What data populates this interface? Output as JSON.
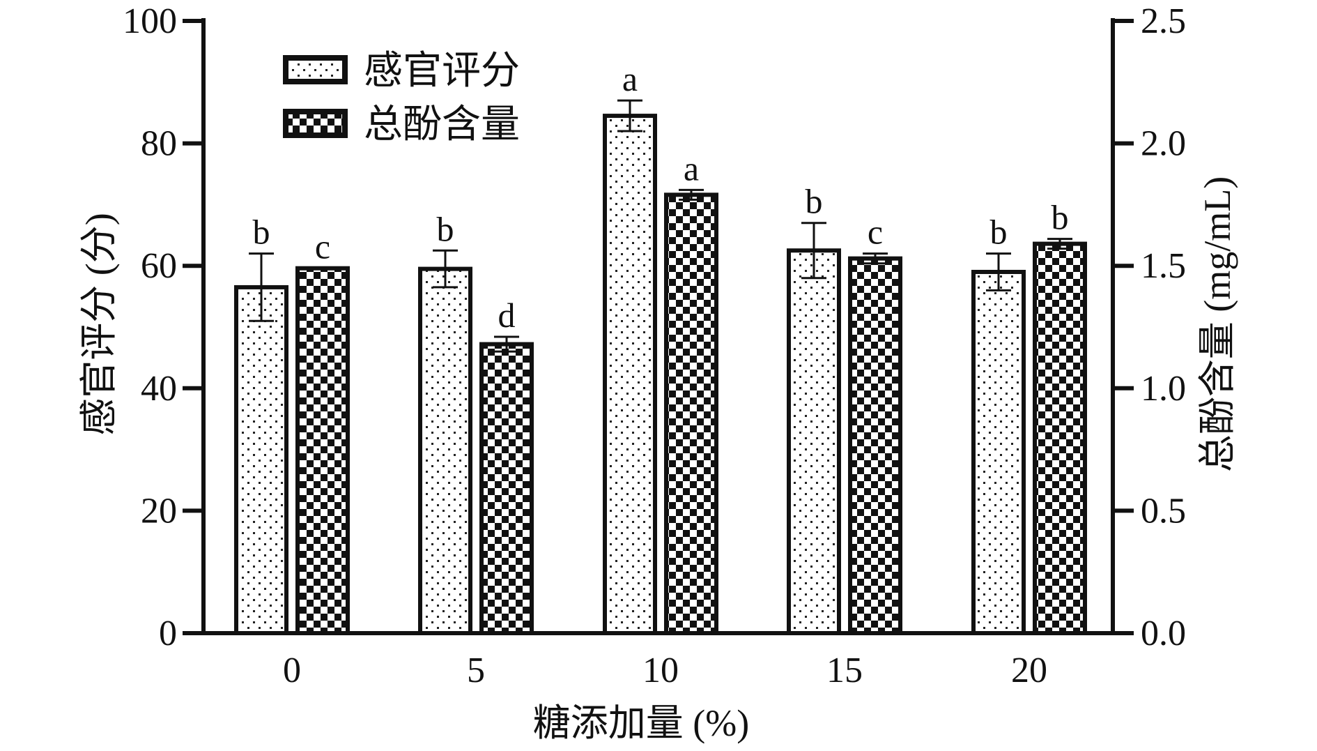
{
  "chart_data": {
    "type": "bar",
    "xlabel": "糖添加量 (%)",
    "ylabel_left": "感官评分 (分)",
    "ylabel_right": "总酚含量 (mg/mL)",
    "categories": [
      "0",
      "5",
      "10",
      "15",
      "20"
    ],
    "ylim_left": [
      0,
      100
    ],
    "ylim_right": [
      0,
      2.5
    ],
    "yticks_left": [
      "0",
      "20",
      "40",
      "60",
      "80",
      "100"
    ],
    "yticks_right": [
      "0.0",
      "0.5",
      "1.0",
      "1.5",
      "2.0",
      "2.5"
    ],
    "grid": false,
    "legend_position": "top-left",
    "series": [
      {
        "name": "感官评分",
        "axis": "left",
        "pattern": "dots",
        "values": [
          56.5,
          59.5,
          84.5,
          62.5,
          59.0
        ],
        "errors": [
          5.5,
          3.0,
          2.5,
          4.5,
          3.0
        ],
        "letters": [
          "b",
          "b",
          "a",
          "b",
          "b"
        ]
      },
      {
        "name": "总酚含量",
        "axis": "right",
        "pattern": "checker",
        "values": [
          1.49,
          1.18,
          1.79,
          1.53,
          1.59
        ],
        "errors": [
          0.0,
          0.03,
          0.02,
          0.02,
          0.02
        ],
        "letters": [
          "c",
          "d",
          "a",
          "c",
          "b"
        ]
      }
    ],
    "colors": {
      "ink": "#111111",
      "background": "#ffffff"
    }
  }
}
